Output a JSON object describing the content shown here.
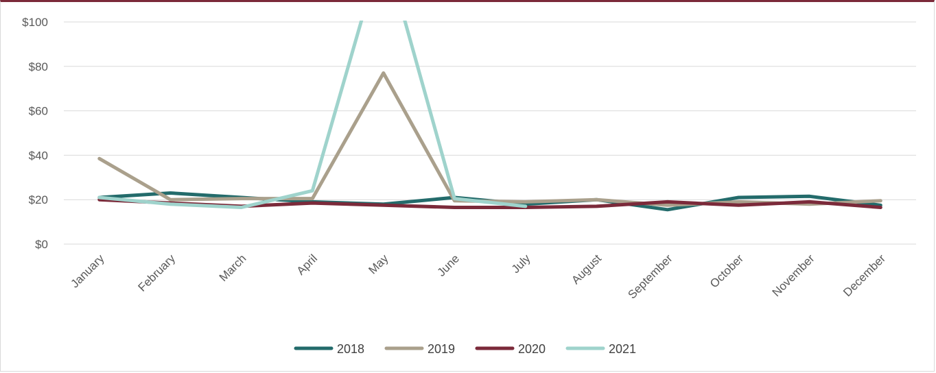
{
  "chart_data": {
    "type": "line",
    "title": "",
    "xlabel": "",
    "ylabel": "",
    "categories": [
      "January",
      "February",
      "March",
      "April",
      "May",
      "June",
      "July",
      "August",
      "September",
      "October",
      "November",
      "December"
    ],
    "y_ticks": [
      "$0",
      "$20",
      "$40",
      "$60",
      "$80",
      "$100"
    ],
    "ylim": [
      0,
      100
    ],
    "grid": true,
    "legend_position": "bottom",
    "series": [
      {
        "name": "2018",
        "color": "#236b6b",
        "values": [
          21,
          23,
          21,
          19,
          18,
          21,
          18,
          20,
          15.5,
          21,
          21.5,
          17.5
        ]
      },
      {
        "name": "2019",
        "color": "#aaa08c",
        "values": [
          38.5,
          20,
          20.5,
          20.5,
          77,
          19.5,
          19,
          20,
          17.5,
          19,
          18,
          19.5
        ]
      },
      {
        "name": "2020",
        "color": "#7b2a3a",
        "values": [
          20,
          18.5,
          17,
          18.5,
          17.5,
          16.5,
          16.5,
          17,
          19,
          17.5,
          19,
          16.5
        ]
      },
      {
        "name": "2021",
        "color": "#9fd3cc",
        "values": [
          21,
          18,
          16.5,
          24,
          135,
          20.5,
          17,
          null,
          null,
          null,
          null,
          null
        ]
      }
    ]
  }
}
